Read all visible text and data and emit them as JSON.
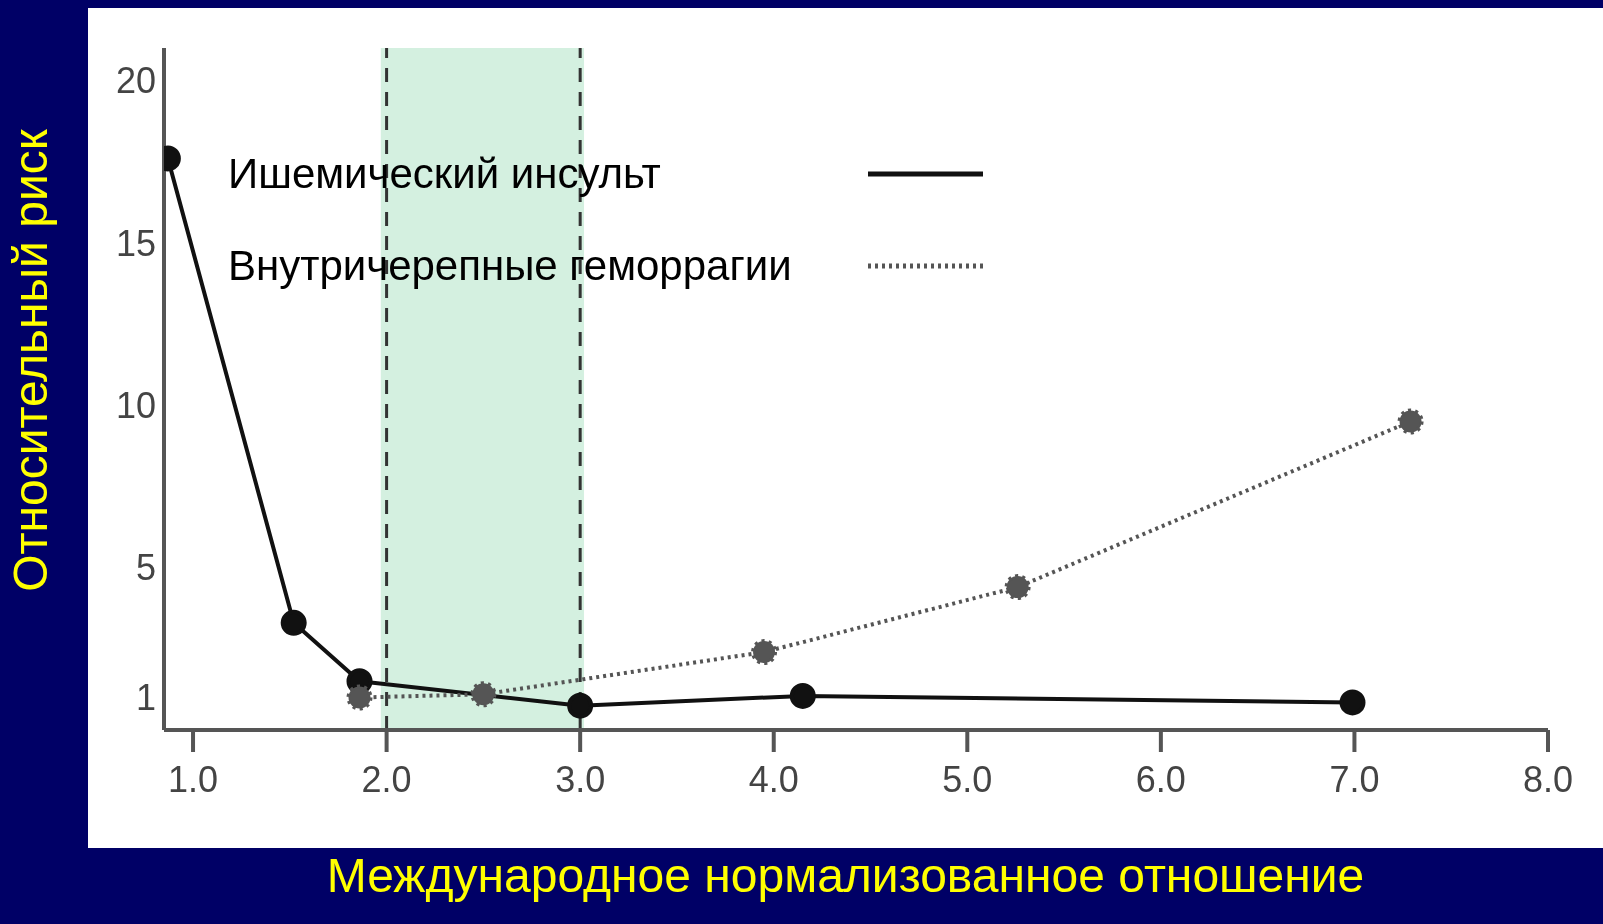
{
  "chart_data": {
    "type": "line",
    "xlabel": "Международное нормализованное отношение",
    "ylabel": "Относительный риск",
    "xlim": [
      0.85,
      8.0
    ],
    "xticks": [
      {
        "value": 1,
        "label": "1.0"
      },
      {
        "value": 2,
        "label": "2.0"
      },
      {
        "value": 3,
        "label": "3.0"
      },
      {
        "value": 4,
        "label": "4.0"
      },
      {
        "value": 5,
        "label": "5.0"
      },
      {
        "value": 6,
        "label": "6.0"
      },
      {
        "value": 7,
        "label": "7.0"
      },
      {
        "value": 8,
        "label": "8.0"
      }
    ],
    "ylim": [
      0,
      21
    ],
    "yticks": [
      1,
      5,
      10,
      15,
      20
    ],
    "grid": false,
    "legend": "top left",
    "marker": "circle",
    "series": [
      {
        "name": "Ишемический инсульт",
        "color": "#111111",
        "line_style": "solid",
        "x": [
          0.87,
          1.52,
          1.86,
          3.0,
          4.15,
          6.99
        ],
        "values": [
          17.6,
          3.3,
          1.5,
          0.75,
          1.05,
          0.85
        ]
      },
      {
        "name": "Внутричерепные геморрагии",
        "color": "#555555",
        "line_style": "dotted",
        "x": [
          1.86,
          2.5,
          3.95,
          5.26,
          7.29
        ],
        "values": [
          1.0,
          1.1,
          2.4,
          4.4,
          9.5
        ]
      }
    ],
    "bands": [
      {
        "axis": "x",
        "from": 1.97,
        "to": 3.02,
        "color": "#d4f0e0"
      }
    ],
    "ref_lines": [
      {
        "axis": "x",
        "value": 2.0,
        "color": "#333333",
        "line_style": "dashed"
      },
      {
        "axis": "x",
        "value": 3.0,
        "color": "#333333",
        "line_style": "dashed"
      }
    ]
  }
}
